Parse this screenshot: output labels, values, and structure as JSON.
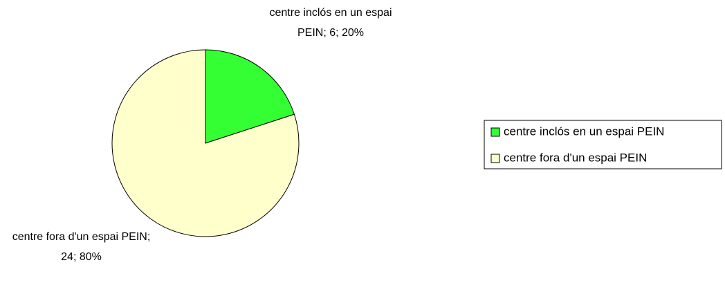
{
  "chart_data": {
    "type": "pie",
    "categories": [
      "centre inclós en un espai PEIN",
      "centre fora d'un espai PEIN"
    ],
    "values": [
      6,
      24
    ],
    "value_labels": [
      "centre inclós en un espai PEIN; 6; 20%",
      "centre fora d'un espai PEIN; 24; 80%"
    ],
    "colors": [
      "#33ff33",
      "#ffffcc"
    ],
    "legend": "right"
  }
}
